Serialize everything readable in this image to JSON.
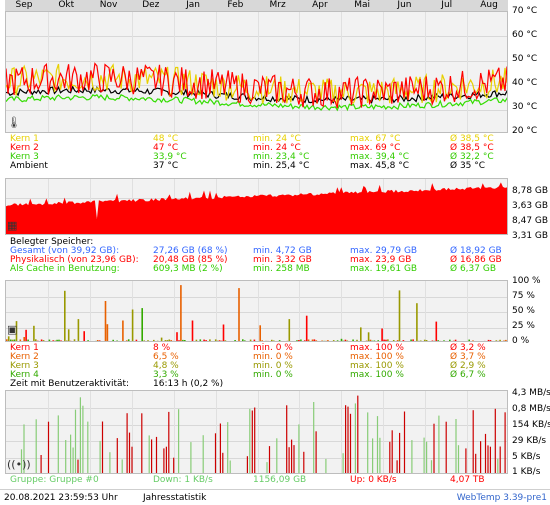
{
  "months": [
    "Sep",
    "Okt",
    "Nov",
    "Dez",
    "Jan",
    "Feb",
    "Mrz",
    "Apr",
    "Mai",
    "Jun",
    "Jul",
    "Aug"
  ],
  "temperature": {
    "axis": [
      "70 °C",
      "60 °C",
      "50 °C",
      "40 °C",
      "30 °C",
      "20 °C"
    ],
    "rows": [
      {
        "label": "Kern 1",
        "cur": "48 °C",
        "min": "min. 24 °C",
        "max": "max. 67 °C",
        "avg": "Ø 38,5 °C",
        "color": "#e8d000"
      },
      {
        "label": "Kern 2",
        "cur": "47 °C",
        "min": "min. 24 °C",
        "max": "max. 69 °C",
        "avg": "Ø 38,5 °C",
        "color": "#ff0000"
      },
      {
        "label": "Kern 3",
        "cur": "33,9 °C",
        "min": "min. 23,4 °C",
        "max": "max. 39,4 °C",
        "avg": "Ø 32,2 °C",
        "color": "#33cc00"
      },
      {
        "label": "Ambient",
        "cur": "37 °C",
        "min": "min. 25,4 °C",
        "max": "max. 45,8 °C",
        "avg": "Ø 35 °C",
        "color": "#000000"
      }
    ]
  },
  "memory": {
    "axis": [
      "8,78 GB",
      "3,63 GB",
      "8,47 GB",
      "3,31 GB"
    ],
    "title": "Belegter Speicher:",
    "rows": [
      {
        "label": "Gesamt (von 39,92 GB):",
        "cur": "27,26 GB (68 %)",
        "min": "min. 4,72 GB",
        "max": "max. 29,79 GB",
        "avg": "Ø 18,92 GB",
        "color": "#3366ff"
      },
      {
        "label": "Physikalisch (von 23,96 GB):",
        "cur": "20,48 GB (85 %)",
        "min": "min. 3,32 GB",
        "max": "max. 23,9 GB",
        "avg": "Ø 16,86 GB",
        "color": "#ff0000"
      },
      {
        "label": "Als Cache in Benutzung:",
        "cur": "609,3 MB (2 %)",
        "min": "min. 258 MB",
        "max": "max. 19,61 GB",
        "avg": "Ø 6,37 GB",
        "color": "#33cc00"
      }
    ]
  },
  "cpu": {
    "axis": [
      "100 %",
      "75 %",
      "50 %",
      "25 %",
      "0 %"
    ],
    "rows": [
      {
        "label": "Kern 1",
        "cur": "8 %",
        "min": "min. 0 %",
        "max": "max. 100 %",
        "avg": "Ø 3,2 %",
        "color": "#ff0000"
      },
      {
        "label": "Kern 2",
        "cur": "6,5 %",
        "min": "min. 0 %",
        "max": "max. 100 %",
        "avg": "Ø 3,7 %",
        "color": "#e86000"
      },
      {
        "label": "Kern 3",
        "cur": "4,8 %",
        "min": "min. 0 %",
        "max": "max. 100 %",
        "avg": "Ø 2,9 %",
        "color": "#999900"
      },
      {
        "label": "Kern 4",
        "cur": "3,3 %",
        "min": "min. 0 %",
        "max": "max. 100 %",
        "avg": "Ø 6,7 %",
        "color": "#33aa00"
      }
    ],
    "activity_label": "Zeit mit Benutzeraktivität:",
    "activity_value": "16:13 h (0,2 %)"
  },
  "network": {
    "axis": [
      "4,3 MB/s",
      "0,8 MB/s",
      "154 KB/s",
      "29 KB/s",
      "5 KB/s",
      "1 KB/s"
    ],
    "group": "Gruppe: Gruppe #0",
    "down": "Down: 1 KB/s",
    "total": "1156,09 GB",
    "up": "Up: 0 KB/s",
    "up_total": "4,07 TB"
  },
  "footer": {
    "datetime": "20.08.2021 23:59:53 Uhr",
    "title": "Jahresstatistik",
    "version": "WebTemp 3.39-pre1"
  }
}
